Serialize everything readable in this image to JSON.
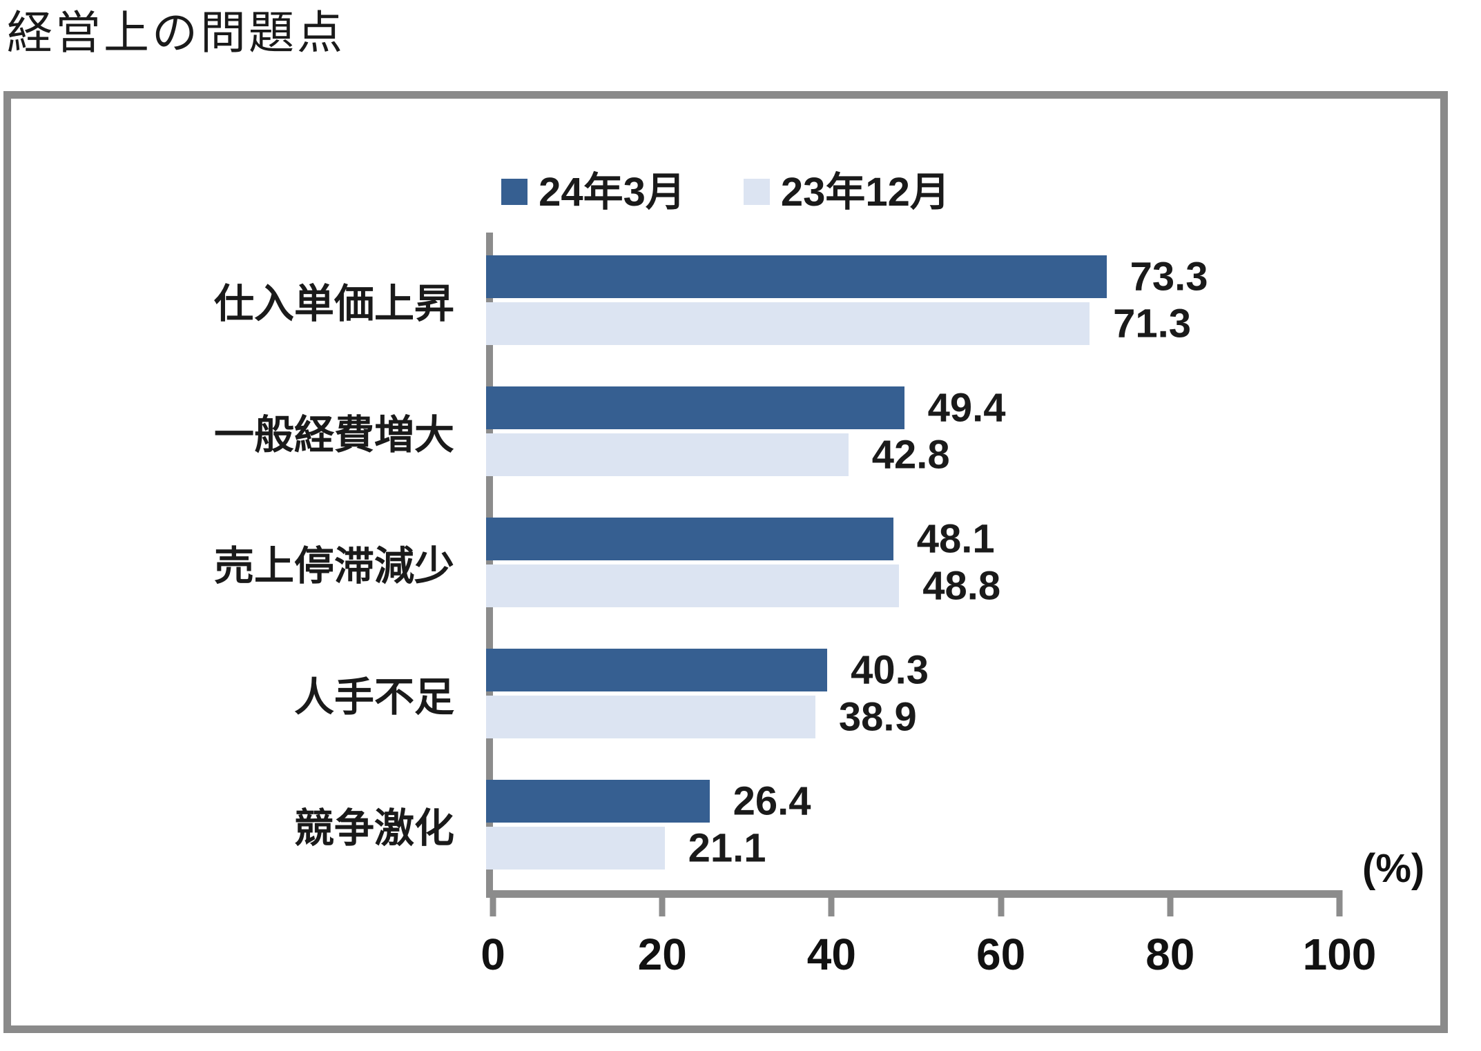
{
  "page_title": "経営上の問題点",
  "chart_data": {
    "type": "bar",
    "orientation": "horizontal",
    "title": "経営上の問題点",
    "categories": [
      "仕入単価上昇",
      "一般経費増大",
      "売上停滞減少",
      "人手不足",
      "競争激化"
    ],
    "series": [
      {
        "name": "24年3月",
        "color": "#365f91",
        "values": [
          73.3,
          49.4,
          48.1,
          40.3,
          26.4
        ]
      },
      {
        "name": "23年12月",
        "color": "#dce4f2",
        "values": [
          71.3,
          42.8,
          48.8,
          38.9,
          21.1
        ]
      }
    ],
    "xlim": [
      0,
      100
    ],
    "x_ticks": [
      0,
      20,
      40,
      60,
      80,
      100
    ],
    "unit_label": "(%)",
    "legend_position": "top",
    "value_labels": true,
    "grid": false
  },
  "colors": {
    "series1": "#365f91",
    "series2": "#dce4f2",
    "axis": "#8c8c8c",
    "frame": "#8a8a8a",
    "text": "#111111"
  }
}
